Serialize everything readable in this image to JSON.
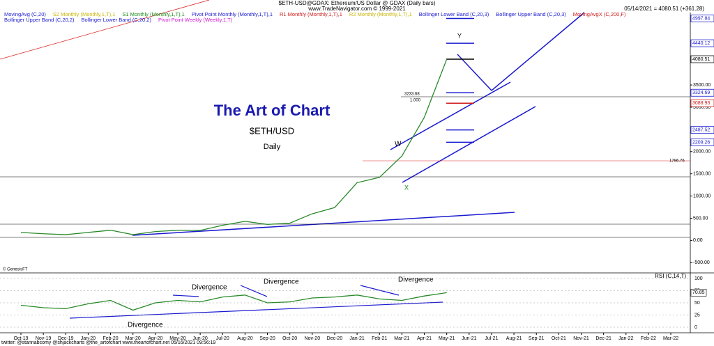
{
  "chart_data": {
    "type": "line",
    "header": [
      "$ETH-USD@GDAX: Ethereum/US Dollar @ GDAX (Daily bars)",
      "www.TradeNavigator.com © 1999-2021"
    ],
    "quote": "05/14/2021 = 4080.51 (+361.28)",
    "indicators": [
      {
        "name": "MovingAvg (C,20)",
        "color": "#1a1ad0"
      },
      {
        "name": "S2 Monthly (Monthly,1,T),1",
        "color": "#c8b400"
      },
      {
        "name": "S1 Monthly (Monthly,1,T),1",
        "color": "#1a8a1a"
      },
      {
        "name": "Pivot Point Monthly (Monthly,1,T),1",
        "color": "#1a1ad0"
      },
      {
        "name": "R1 Monthly (Monthly,1,T),1",
        "color": "#d01a1a"
      },
      {
        "name": "R2 Monthly (Monthly,1,T),1",
        "color": "#c8b400"
      },
      {
        "name": "Bollinger Lower Band (C,20,3)",
        "color": "#1a1ad0"
      },
      {
        "name": "Bollinger Upper Band (C,20,3)",
        "color": "#1a1ad0"
      },
      {
        "name": "MovingAvgX (C,200,F)",
        "color": "#d01a1a"
      }
    ],
    "indicators2": [
      {
        "name": "Bollinger Upper Band (C,20,2)",
        "color": "#1a1ad0"
      },
      {
        "name": "Bollinger Lower Band (C,20,2)",
        "color": "#1a1ad0"
      },
      {
        "name": "Pivot Point Weekly (Weekly,1,T)",
        "color": "#d01ad0"
      }
    ],
    "title": "The Art of Chart",
    "subtitle": "$ETH/USD",
    "period": "Daily",
    "credit": "© GenesisFT",
    "footer": "twitter: @stannabcomy @shjackcharts @the_artofchart www.theartofchart.net 05/16/2021 09:56:19",
    "categories": [
      "Oct-19",
      "Nov-19",
      "Dec-19",
      "Jan-20",
      "Feb-20",
      "Mar-20",
      "Apr-20",
      "May-20",
      "Jun-20",
      "Jul-20",
      "Aug-20",
      "Sep-20",
      "Oct-20",
      "Nov-20",
      "Dec-20",
      "Jan-21",
      "Feb-21",
      "Mar-21",
      "Apr-21",
      "May-21",
      "Jun-21",
      "Jul-21",
      "Aug-21",
      "Sep-21",
      "Oct-21",
      "Nov-21",
      "Dec-21",
      "Jan-22",
      "Feb-22",
      "Mar-22"
    ],
    "series": [
      {
        "color": "#2a8a2a",
        "values": [
          180,
          150,
          130,
          180,
          230,
          130,
          200,
          230,
          225,
          340,
          430,
          360,
          390,
          600,
          740,
          1300,
          1420,
          1900,
          2770,
          4080,
          null,
          null,
          null,
          null,
          null,
          null,
          null,
          null,
          null,
          null
        ]
      }
    ],
    "ylim": [
      -700,
      5100
    ],
    "yticks": [
      {
        "value": -500,
        "label": "-500.00"
      },
      {
        "value": 0,
        "label": "0.00"
      },
      {
        "value": 500,
        "label": "500.00"
      },
      {
        "value": 1000,
        "label": "1000.00"
      },
      {
        "value": 1500,
        "label": "1500.00"
      },
      {
        "value": 2000,
        "label": "2000.00"
      },
      {
        "value": 3000,
        "label": "3000.00"
      },
      {
        "value": 3500,
        "label": "3500.00"
      }
    ],
    "levels": [
      {
        "value": 4997.84,
        "color": "#1a1ad0"
      },
      {
        "value": 4440.12,
        "color": "#1a1ad0"
      },
      {
        "value": 4080.51,
        "color": "#000000"
      },
      {
        "value": 3324.69,
        "color": "#1a1ad0"
      },
      {
        "value": 3088.93,
        "color": "#d01a1a"
      },
      {
        "value": 2487.52,
        "color": "#1a1ad0"
      },
      {
        "value": 2209.26,
        "color": "#1a1ad0"
      }
    ],
    "annotations": [
      "3233.68",
      "1.000",
      "1796.76",
      "W",
      "X",
      "Y"
    ],
    "rsi": {
      "title": "RSI (C,14,T)",
      "color": "#2a8a2a",
      "values": [
        45,
        40,
        38,
        48,
        55,
        35,
        50,
        55,
        52,
        62,
        66,
        50,
        52,
        60,
        62,
        66,
        58,
        55,
        64,
        70.85,
        null,
        null,
        null,
        null,
        null,
        null,
        null,
        null,
        null,
        null
      ],
      "ylim": [
        0,
        100
      ],
      "yticks": [
        0,
        25,
        50,
        75,
        100
      ]
    },
    "divergence": [
      "Divergence",
      "Divergence",
      "Divergence",
      "Divergence"
    ]
  }
}
